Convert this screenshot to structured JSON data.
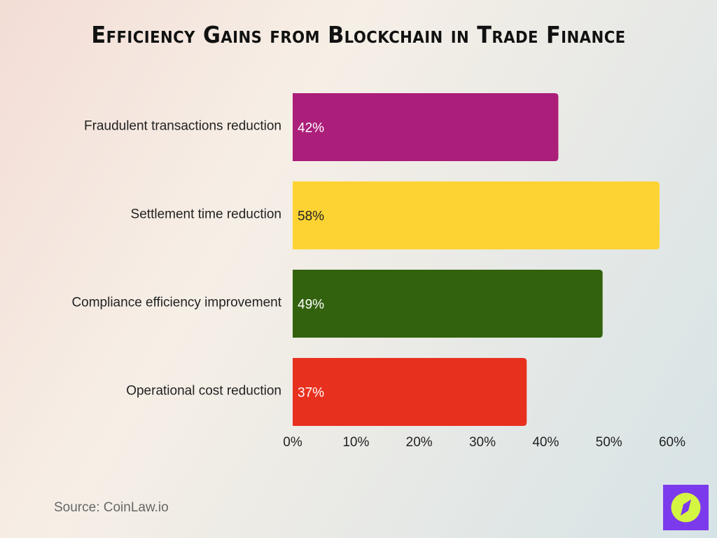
{
  "title": "Efficiency Gains from Blockchain in Trade Finance",
  "source": "Source: CoinLaw.io",
  "logo": {
    "icon": "compass-icon",
    "background": "#7c3aed",
    "circle": "#d4f542"
  },
  "chart_data": {
    "type": "bar",
    "orientation": "horizontal",
    "title": "Efficiency Gains from Blockchain in Trade Finance",
    "categories": [
      "Fraudulent transactions reduction",
      "Settlement time reduction",
      "Compliance efficiency improvement",
      "Operational cost reduction"
    ],
    "values": [
      42,
      58,
      49,
      37
    ],
    "data_labels": [
      "42%",
      "58%",
      "49%",
      "37%"
    ],
    "colors": [
      "#ab1e7a",
      "#fdd334",
      "#32620e",
      "#e8301f"
    ],
    "label_colors": [
      "#ffffff",
      "#222222",
      "#ffffff",
      "#ffffff"
    ],
    "xlim": [
      0,
      60
    ],
    "x_ticks": [
      "0%",
      "10%",
      "20%",
      "30%",
      "40%",
      "50%",
      "60%"
    ],
    "grid": false,
    "xlabel": "",
    "ylabel": ""
  }
}
